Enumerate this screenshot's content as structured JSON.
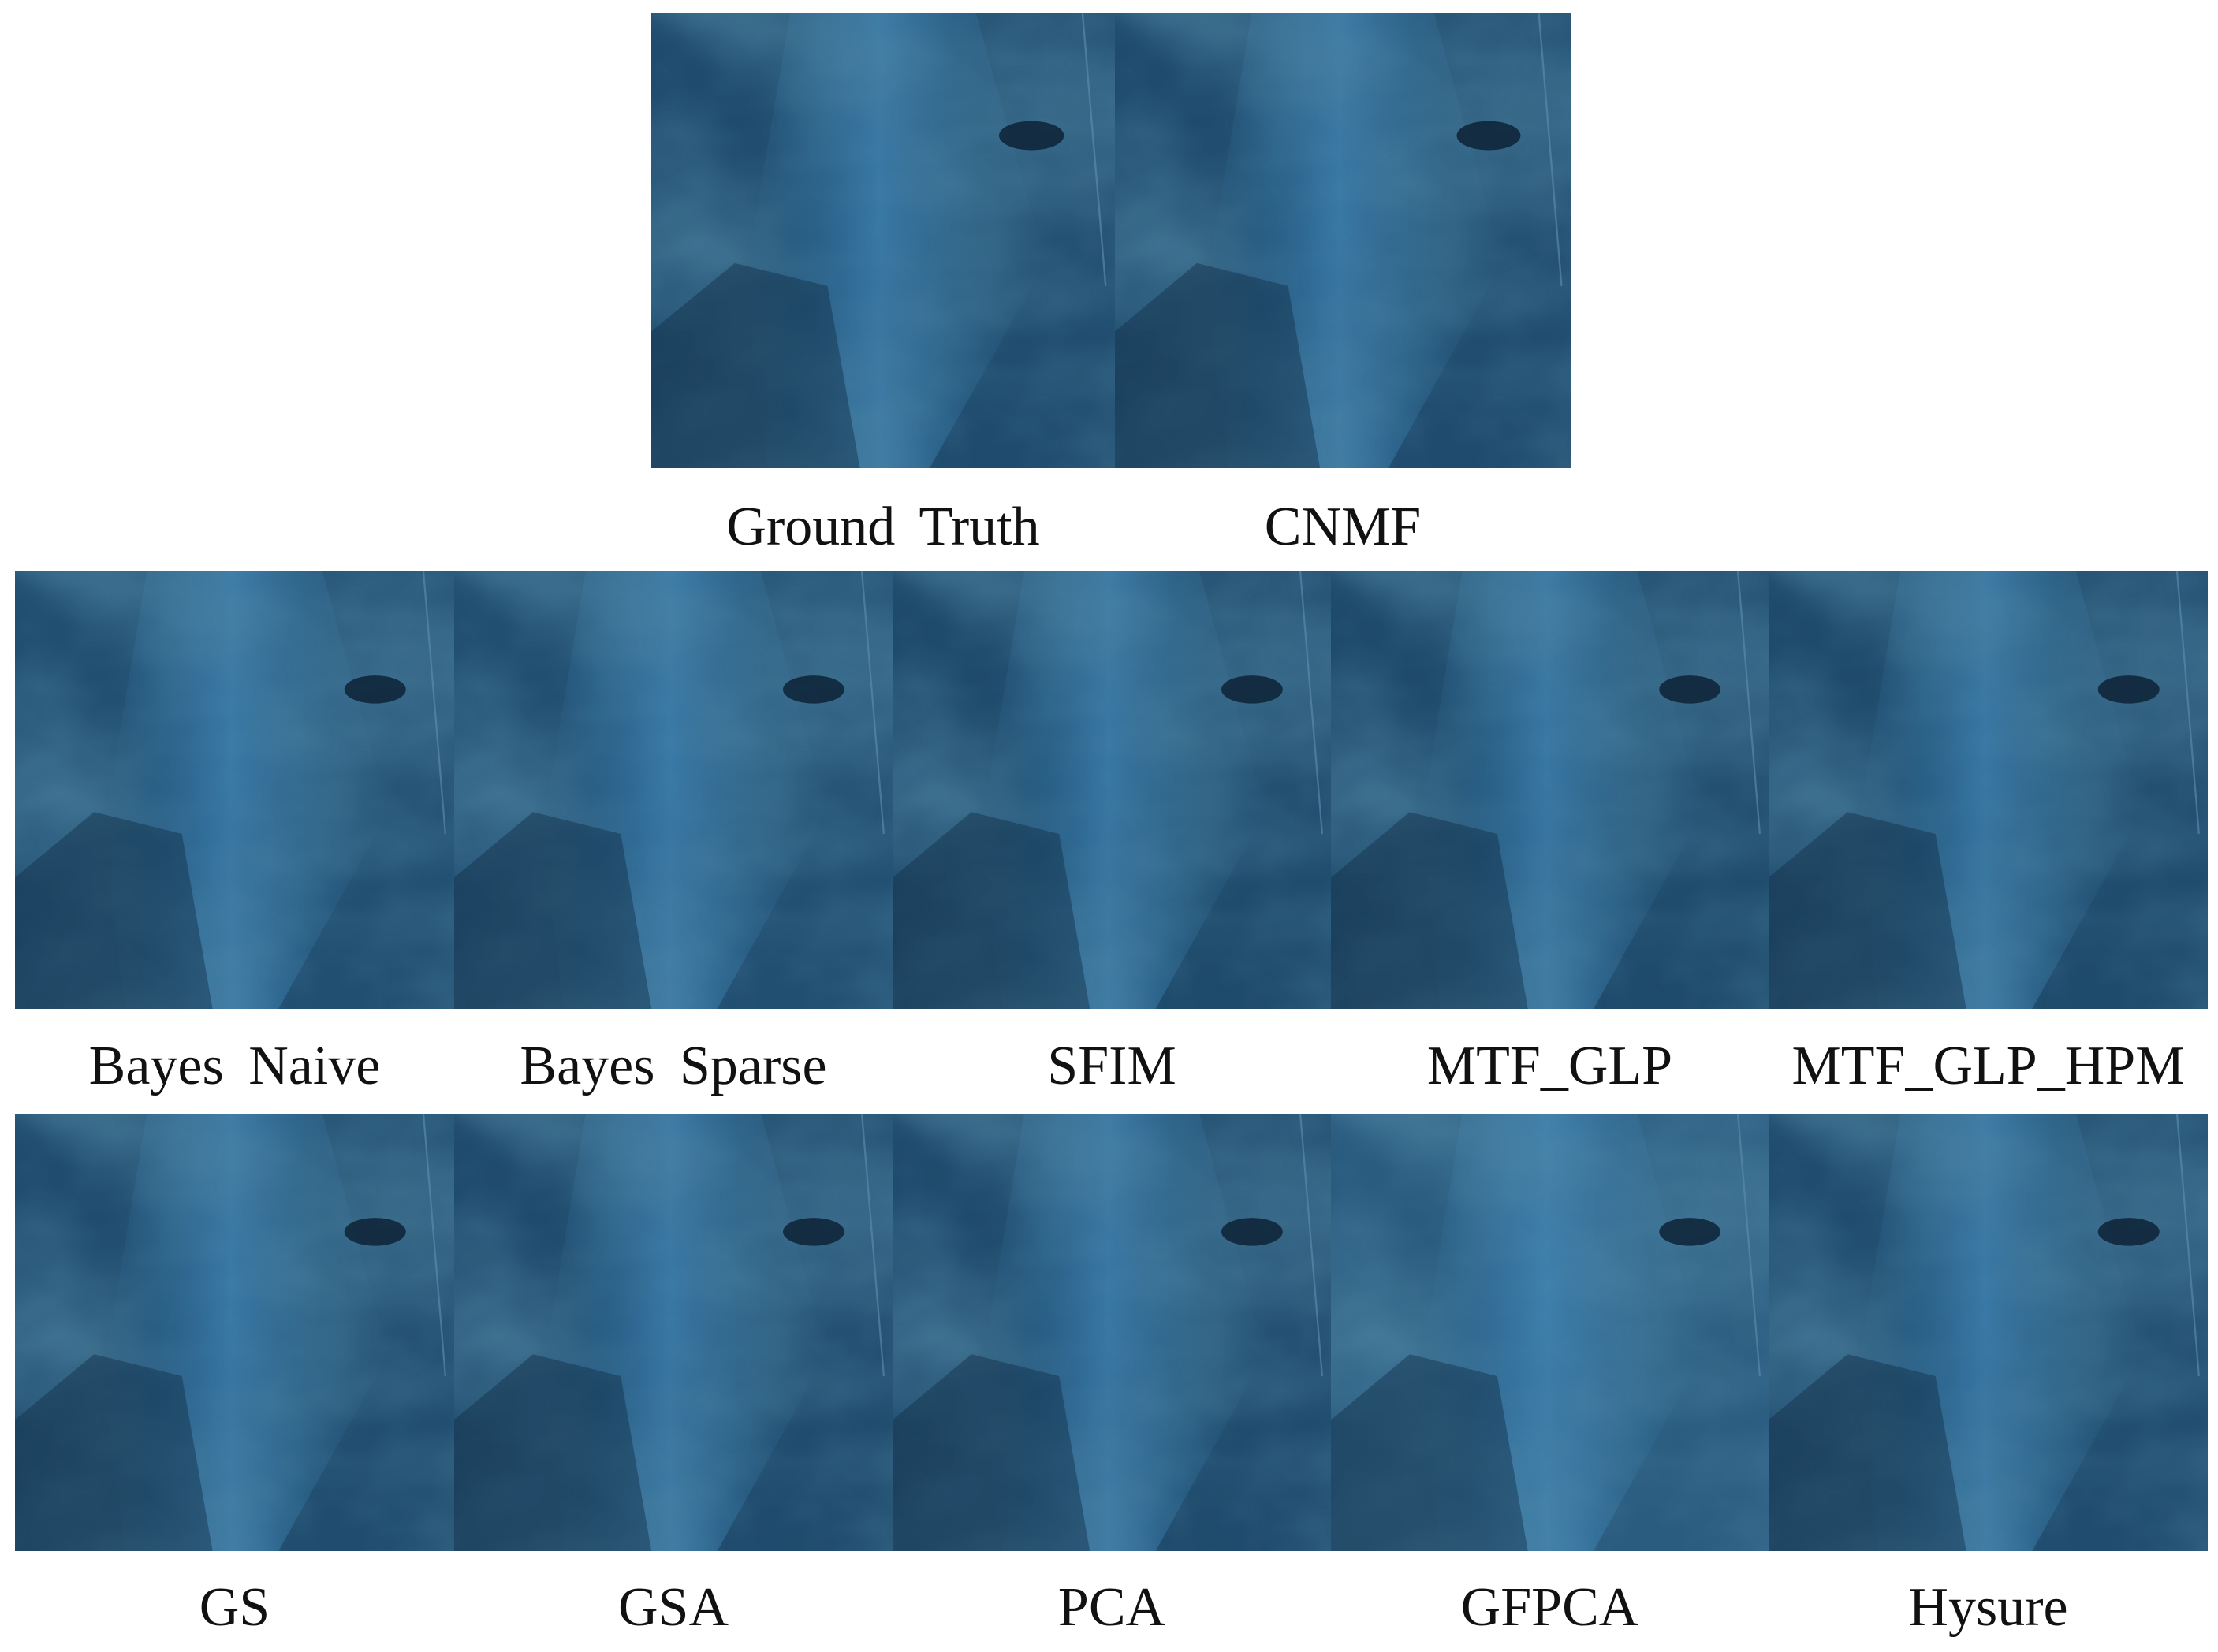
{
  "panels": [
    {
      "label": "Ground Truth",
      "tone": "#1f4c6e"
    },
    {
      "label": "CNMF",
      "tone": "#1f4c6e"
    },
    {
      "label": "Bayes  Naive",
      "tone": "#214f72"
    },
    {
      "label": "Bayes  Sparse",
      "tone": "#214f72"
    },
    {
      "label": "SFIM",
      "tone": "#1e4a6b"
    },
    {
      "label": "MTF_GLP",
      "tone": "#1e4a6b"
    },
    {
      "label": "MTF_GLP_HPM",
      "tone": "#1e4a6b"
    },
    {
      "label": "GS",
      "tone": "#204d6f"
    },
    {
      "label": "GSA",
      "tone": "#1f4b6d"
    },
    {
      "label": "PCA",
      "tone": "#1f4b6d"
    },
    {
      "label": "GFPCA",
      "tone": "#2a5c80"
    },
    {
      "label": "Hysure",
      "tone": "#204d6f"
    }
  ]
}
